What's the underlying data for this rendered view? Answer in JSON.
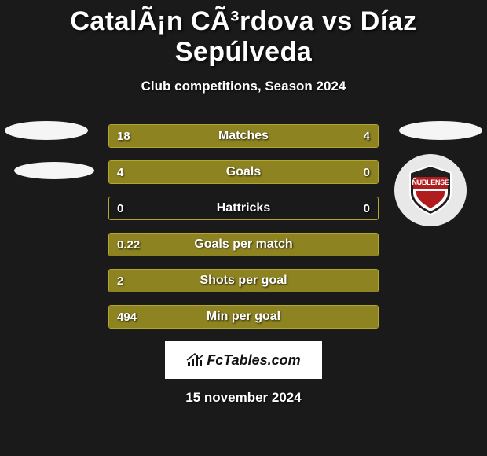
{
  "title": "CatalÃ¡n CÃ³rdova vs Díaz Sepúlveda",
  "subtitle": "Club competitions, Season 2024",
  "date": "15 november 2024",
  "brand": "FcTables.com",
  "club_badge_text": "ÑUBLENSE",
  "colors": {
    "bar": "#8e8321",
    "bar_border": "#b3a52e",
    "shield_red": "#b11d1f",
    "shield_dark": "#1f1f1f",
    "shield_outline": "#ffffff",
    "placeholder": "#f5f5f5"
  },
  "bar_total_width": 342,
  "rows": [
    {
      "label": "Matches",
      "left_val": "18",
      "right_val": "4",
      "left_pct": 81.8,
      "right_pct": 18.2
    },
    {
      "label": "Goals",
      "left_val": "4",
      "right_val": "0",
      "left_pct": 100,
      "right_pct": 0
    },
    {
      "label": "Hattricks",
      "left_val": "0",
      "right_val": "0",
      "left_pct": 0,
      "right_pct": 0
    },
    {
      "label": "Goals per match",
      "left_val": "0.22",
      "right_val": "",
      "left_pct": 100,
      "right_pct": 0
    },
    {
      "label": "Shots per goal",
      "left_val": "2",
      "right_val": "",
      "left_pct": 100,
      "right_pct": 0
    },
    {
      "label": "Min per goal",
      "left_val": "494",
      "right_val": "",
      "left_pct": 100,
      "right_pct": 0
    }
  ]
}
